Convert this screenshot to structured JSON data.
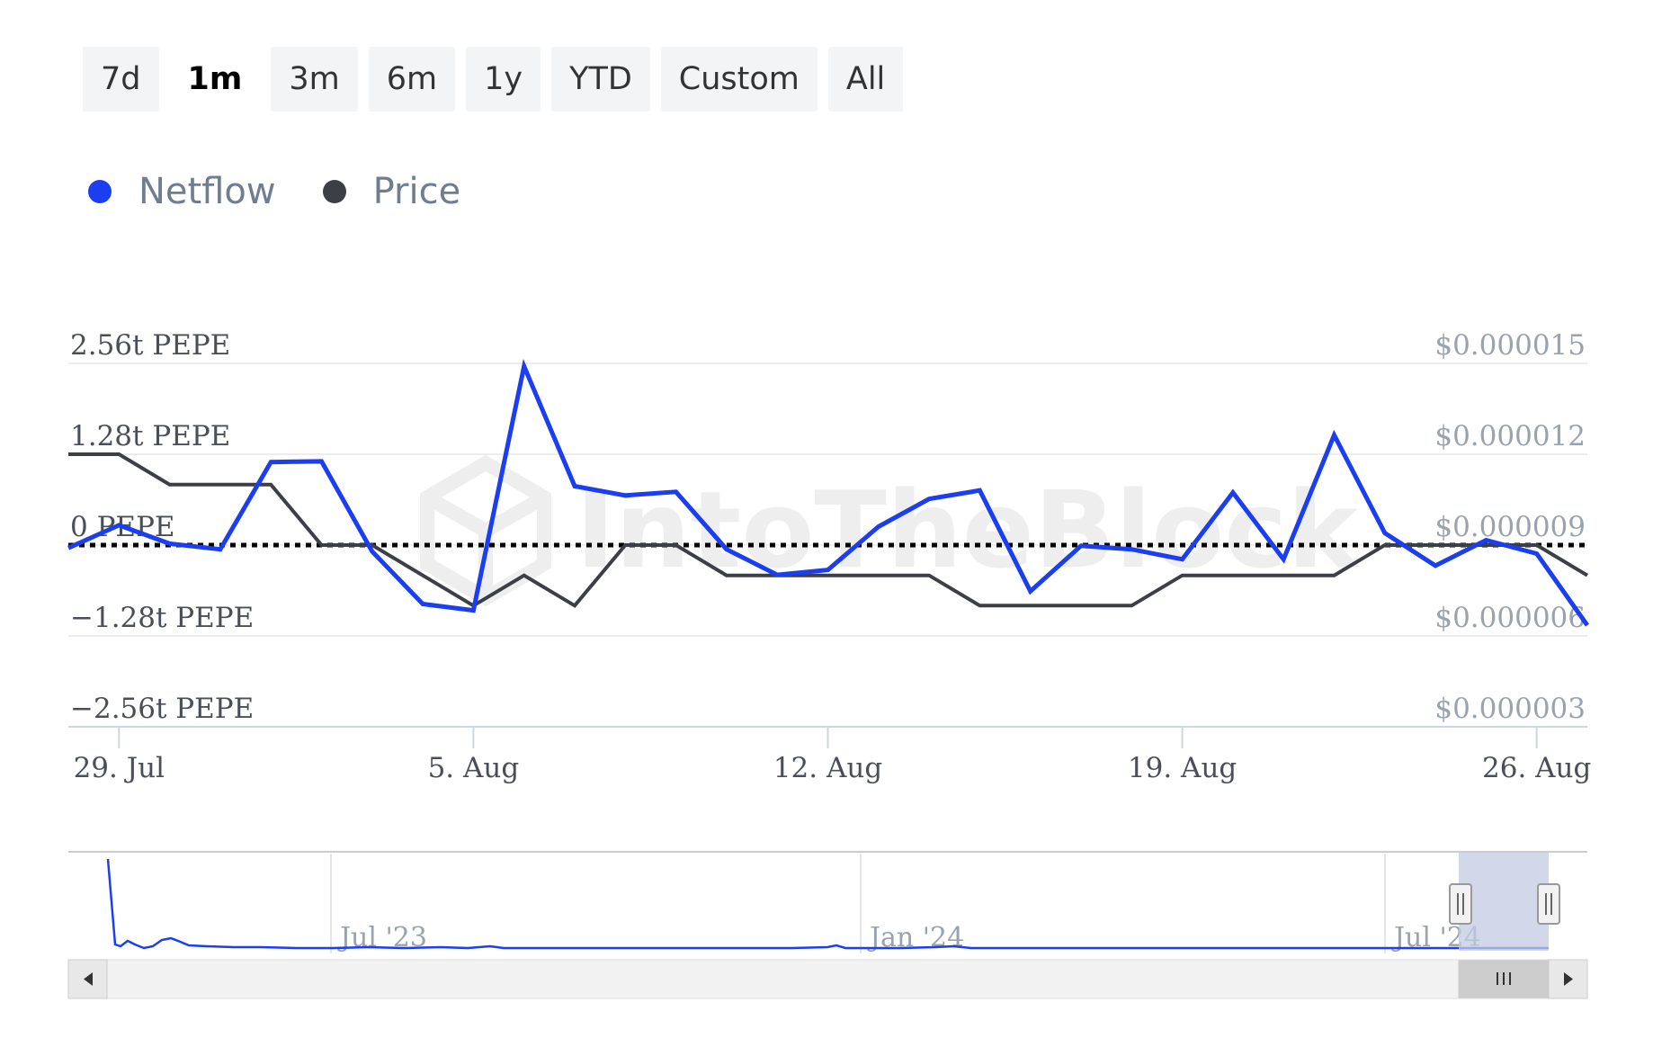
{
  "range_selector": {
    "buttons": [
      "7d",
      "1m",
      "3m",
      "6m",
      "1y",
      "YTD",
      "Custom",
      "All"
    ],
    "active": "1m"
  },
  "legend": [
    {
      "name": "Netflow",
      "color": "#1a3ef0"
    },
    {
      "name": "Price",
      "color": "#3c3f45"
    }
  ],
  "watermark": "IntoTheBlock",
  "chart_data": {
    "type": "line",
    "x_dates": [
      "28 Jul",
      "29 Jul",
      "30 Jul",
      "31 Jul",
      "1 Aug",
      "2 Aug",
      "3 Aug",
      "4 Aug",
      "5 Aug",
      "6 Aug",
      "7 Aug",
      "8 Aug",
      "9 Aug",
      "10 Aug",
      "11 Aug",
      "12 Aug",
      "13 Aug",
      "14 Aug",
      "15 Aug",
      "16 Aug",
      "17 Aug",
      "18 Aug",
      "19 Aug",
      "20 Aug",
      "21 Aug",
      "22 Aug",
      "23 Aug",
      "24 Aug",
      "25 Aug",
      "26 Aug",
      "27 Aug"
    ],
    "x_tick_labels": [
      "29. Jul",
      "5. Aug",
      "12. Aug",
      "19. Aug",
      "26. Aug"
    ],
    "x_tick_dates": [
      "29 Jul",
      "5 Aug",
      "12 Aug",
      "19 Aug",
      "26 Aug"
    ],
    "x_range": [
      "28 Jul",
      "27 Aug"
    ],
    "y_left": {
      "unit": "t PEPE",
      "range": [
        -2.56,
        2.56
      ],
      "tick_values": [
        2.56,
        1.28,
        0,
        -1.28,
        -2.56
      ],
      "tick_labels": [
        "2.56t PEPE",
        "1.28t PEPE",
        "0 PEPE",
        "−1.28t PEPE",
        "−2.56t PEPE"
      ]
    },
    "y_right": {
      "range": [
        3e-06,
        1.5e-05
      ],
      "tick_values": [
        1.5e-05,
        1.2e-05,
        9e-06,
        6e-06,
        3e-06
      ],
      "tick_labels": [
        "$0.000015",
        "$0.000012",
        "$0.000009",
        "$0.000006",
        "$0.000003"
      ]
    },
    "zero_line": {
      "value": 0,
      "style": "dotted"
    },
    "series": [
      {
        "name": "Netflow",
        "axis": "left",
        "color": "#1a3ef0",
        "values": [
          -0.04,
          0.28,
          0.02,
          -0.06,
          1.17,
          1.18,
          -0.09,
          -0.83,
          -0.92,
          2.52,
          0.83,
          0.7,
          0.75,
          -0.06,
          -0.42,
          -0.35,
          0.26,
          0.65,
          0.77,
          -0.65,
          -0.01,
          -0.06,
          -0.2,
          0.74,
          -0.2,
          1.55,
          0.17,
          -0.29,
          0.07,
          -0.12,
          -1.13
        ]
      },
      {
        "name": "Price",
        "axis": "right",
        "color": "#3c3f45",
        "values": [
          1.2e-05,
          1.2e-05,
          1.1e-05,
          1.1e-05,
          1.1e-05,
          9e-06,
          9e-06,
          8e-06,
          7e-06,
          8e-06,
          7e-06,
          9e-06,
          9e-06,
          8e-06,
          8e-06,
          8e-06,
          8e-06,
          8e-06,
          7e-06,
          7e-06,
          7e-06,
          7e-06,
          8e-06,
          8e-06,
          8e-06,
          8e-06,
          9e-06,
          9e-06,
          9e-06,
          9e-06,
          8e-06
        ]
      }
    ],
    "navigator": {
      "tick_labels": [
        "Jul '23",
        "Jan '24",
        "Jul '24"
      ]
    }
  }
}
